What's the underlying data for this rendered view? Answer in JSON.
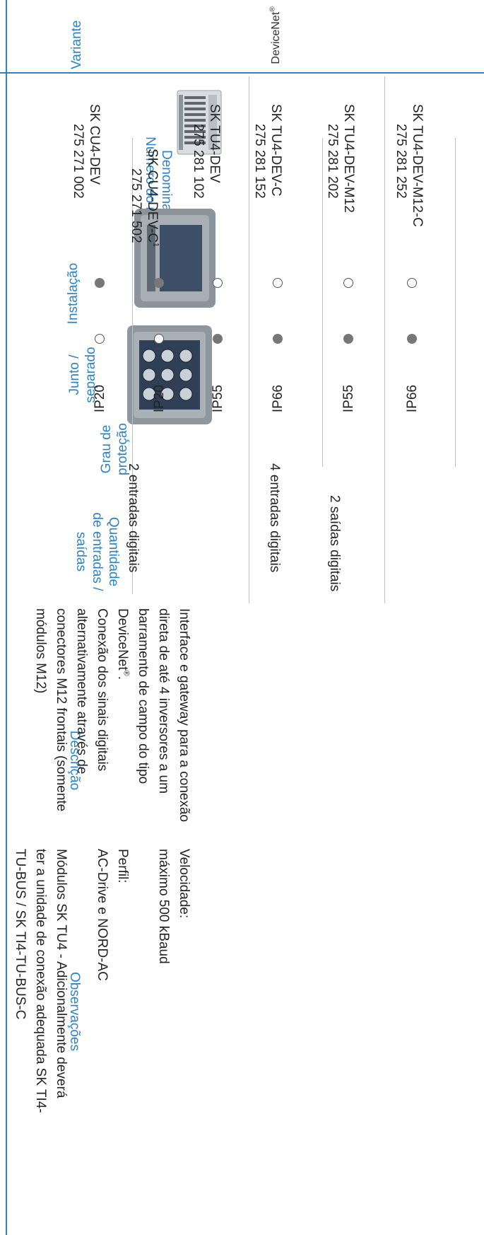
{
  "header": {
    "variant": "Variante",
    "name_line1": "Denominação",
    "name_line2": "Número do material",
    "installation": "Instalação",
    "separate_line1": "Junto /",
    "separate_line2": "separado",
    "protection_line1": "Grau de",
    "protection_line2": "proteção",
    "io_line1": "Quantidade",
    "io_line2": "de entradas /",
    "io_line3": "saídas",
    "description": "Descrição",
    "remarks": "Observações"
  },
  "variant_label": "DeviceNet",
  "variant_mark": "®",
  "rows": [
    {
      "name": "SK CU4-DEV",
      "number": "275 271 002",
      "installation": "filled",
      "separate": "empty",
      "protection": "IP20"
    },
    {
      "name": "SK CU4-DEV-C",
      "name_sup": "1",
      "number": "275 271 502",
      "installation": "filled",
      "separate": "empty",
      "protection": "IP20"
    },
    {
      "name": "SK TU4-DEV",
      "number": "275 281 102",
      "installation": "empty",
      "separate": "filled",
      "protection": "IP55"
    },
    {
      "name": "SK TU4-DEV-C",
      "number": "275 281 152",
      "installation": "empty",
      "separate": "filled",
      "protection": "IP66"
    },
    {
      "name": "SK TU4-DEV-M12",
      "number": "275 281 202",
      "installation": "empty",
      "separate": "filled",
      "protection": "IP55"
    },
    {
      "name": "SK TU4-DEV-M12-C",
      "number": "275 281 252",
      "installation": "empty",
      "separate": "filled",
      "protection": "IP66"
    }
  ],
  "io": {
    "cu4": "2 entradas digitais",
    "tu4_in": "4 entradas digitais",
    "tu4_out": "2 saídas digitais"
  },
  "description": {
    "p1_line1": "Interface e gateway para a conexão",
    "p1_line2": "direta de até 4 inversores a um",
    "p1_line3": "barramento de campo do tipo",
    "p1_line4": "DeviceNet",
    "p1_line4_sup": "®",
    "p1_line4_end": ".",
    "p2_line1": "Conexão dos sinais digitais",
    "p2_line2": "alternativamente através de",
    "p2_line3": "conectores M12 frontais (somente",
    "p2_line4": "módulos M12)"
  },
  "remarks": {
    "speed_label": "Velocidade:",
    "speed_value": "máximo 500 kBaud",
    "profile_label": "Perfil:",
    "profile_value": "AC-Drive e NORD-AC",
    "note_line1": "Módulos SK TU4 - Adicionalmente deverá",
    "note_line2": "ter a unidade de conexão adequada SK TI4-",
    "note_line3": "TU-BUS / SK TI4-TU-BUS-C"
  },
  "colors": {
    "accent": "#2b82c7",
    "text": "#222222",
    "dot": "#777777",
    "rule": "#bfbfbf"
  }
}
